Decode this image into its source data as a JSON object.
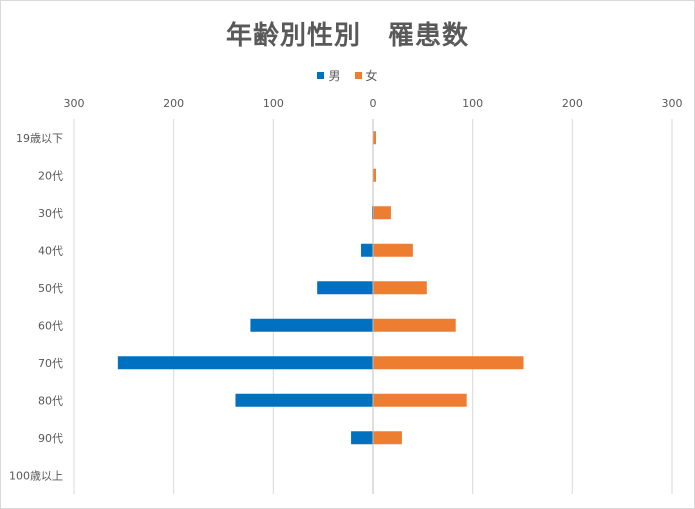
{
  "chart_data": {
    "type": "bar",
    "title": "年齢別性別　罹患数",
    "categories": [
      "19歳以下",
      "20代",
      "30代",
      "40代",
      "50代",
      "60代",
      "70代",
      "80代",
      "90代",
      "100歳以上"
    ],
    "series": [
      {
        "name": "男",
        "color": "#0070c0",
        "values": [
          0,
          0,
          1,
          12,
          56,
          123,
          256,
          138,
          22,
          0
        ]
      },
      {
        "name": "女",
        "color": "#ed7d31",
        "values": [
          3,
          3,
          18,
          40,
          54,
          83,
          151,
          94,
          29,
          0
        ]
      }
    ],
    "xlim": [
      -300,
      300
    ],
    "x_ticks": [
      "300",
      "200",
      "100",
      "0",
      "100",
      "200",
      "300"
    ],
    "x_tick_values": [
      -300,
      -200,
      -100,
      0,
      100,
      200,
      300
    ],
    "grid": true,
    "legend_position": "top"
  }
}
